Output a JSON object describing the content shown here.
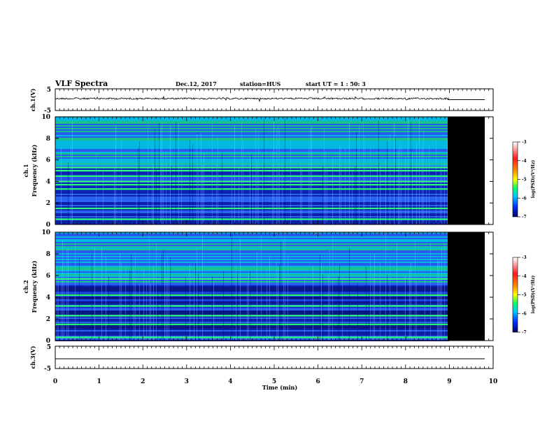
{
  "header": {
    "title": "VLF Spectra",
    "date": "Dec.12, 2017",
    "station": "station=HUS",
    "start_time": "start  UT =   1 : 50: 3"
  },
  "colorbar": {
    "label": "log(PSD)(V²/Hz)",
    "ticks": [
      "-3",
      "-4",
      "-5",
      "-6",
      "-7"
    ],
    "colors": [
      "#ff1a1a",
      "#ff8c00",
      "#ffff00",
      "#00ff66",
      "#00ccff",
      "#0033ff",
      "#000066"
    ]
  },
  "chart_data": [
    {
      "type": "line",
      "ylabel": "ch.1(V)",
      "ylim": [
        -5,
        5
      ],
      "y_tick_labels": [
        "5",
        "-5"
      ],
      "x": [
        0,
        9,
        9.8
      ],
      "y": [
        0.5,
        0.5,
        0.5
      ],
      "description_value": "noisy trace around ~0.5 V until 9 min, flat after"
    },
    {
      "type": "heatmap",
      "ylabel_line1": "ch.1",
      "ylabel_line2": "Frequency (kHz)",
      "ylim": [
        0,
        10
      ],
      "y_tick_labels": [
        "0",
        "2",
        "4",
        "6",
        "8",
        "10"
      ],
      "xlim": [
        0,
        10
      ],
      "data_end_min": 9.8,
      "green_band_khz": [
        0.5,
        1.5,
        3.3,
        3.7,
        4.0,
        4.5,
        5.0,
        5.3
      ],
      "colorbar_range": [
        -7,
        -3
      ]
    },
    {
      "type": "heatmap",
      "ylabel_line1": "ch.2",
      "ylabel_line2": "Frequency (kHz)",
      "ylim": [
        0,
        10
      ],
      "y_tick_labels": [
        "0",
        "2",
        "4",
        "6",
        "8",
        "10"
      ],
      "xlim": [
        0,
        10
      ],
      "data_end_min": 9.8,
      "green_band_khz": [
        0.3,
        1.5,
        2.3,
        3.2,
        4.2,
        5.7
      ],
      "colorbar_range": [
        -7,
        -3
      ]
    },
    {
      "type": "line",
      "ylabel": "ch.3(V)",
      "ylim": [
        -5,
        5
      ],
      "y_tick_labels": [
        "5",
        "-5"
      ],
      "x": [
        0,
        9.8
      ],
      "y": [
        0,
        0
      ]
    }
  ],
  "x_axis": {
    "label": "Time  (min)",
    "ticks": [
      "0",
      "1",
      "2",
      "3",
      "4",
      "5",
      "6",
      "7",
      "8",
      "9",
      "10"
    ],
    "range": [
      0,
      10
    ]
  }
}
